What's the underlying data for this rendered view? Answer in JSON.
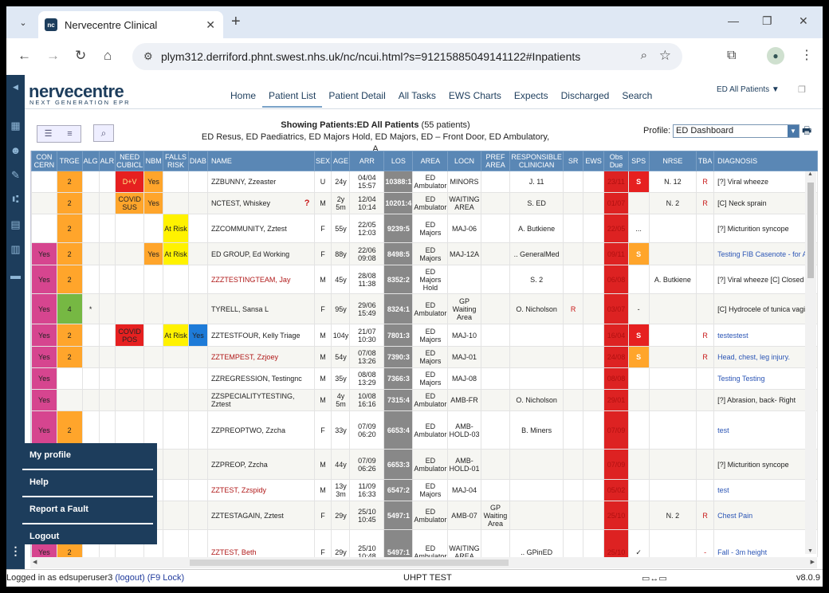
{
  "browser": {
    "tab_title": "Nervecentre Clinical",
    "favicon_text": "nc",
    "url": "plym312.derriford.phnt.swest.nhs.uk/nc/ncui.html?s=91215885049141122#Inpatients"
  },
  "logo": {
    "brand": "nervecentre",
    "tagline": "NEXT GENERATION EPR"
  },
  "nav": {
    "items": [
      "Home",
      "Patient List",
      "Patient Detail",
      "All Tasks",
      "EWS Charts",
      "Expects",
      "Discharged",
      "Search"
    ],
    "active": "Patient List",
    "ward_selector": "ED All Patients ▼"
  },
  "header": {
    "showing_label": "Showing Patients:ED All Patients",
    "count": "(55 patients)",
    "areas": "ED Resus, ED Paediatrics, ED Majors Hold, ED Majors, ED – Front Door, ED Ambulatory, A",
    "profile_label": "Profile:",
    "profile_value": "ED Dashboard"
  },
  "columns": [
    "CON CERN",
    "TRGE",
    "ALG",
    "ALR",
    "NEED CUBICL",
    "NBM",
    "FALLS RISK",
    "DIAB",
    "NAME",
    "SEX",
    "AGE",
    "ARR",
    "LOS",
    "AREA",
    "LOCN",
    "PREF AREA",
    "RESPONSIBLE CLINICIAN",
    "SR",
    "EWS",
    "Obs Due",
    "SPS",
    "NRSE",
    "TBA",
    "DIAGNOSIS"
  ],
  "colors": {
    "pink": "#d6458f",
    "amber": "#ffa52b",
    "red": "#e62020",
    "yellow": "#fff200",
    "green": "#76b843",
    "blue": "#1e7bd8",
    "grey": "#888888",
    "navy": "#1d3d5c"
  },
  "rows": [
    {
      "concern": "",
      "trge": "2",
      "alg": "",
      "need": "D+V",
      "nbm": "Yes",
      "falls": "",
      "diab": "",
      "name": "ZZBUNNY, Zzeaster",
      "name_red": false,
      "flag": "",
      "sex": "U",
      "age": "24y",
      "arr": "04/04 15:57",
      "los": "10388:1",
      "area": "ED Ambulator",
      "locn": "MINORS",
      "pref": "",
      "clin": "J. 11",
      "sr": "",
      "ews": "",
      "obs": "23/11",
      "sps": "S",
      "sps_color": "red",
      "nrse": "N. 12",
      "tba": "R",
      "diag": "[?] Viral wheeze",
      "diag_blue": false,
      "h": 26
    },
    {
      "concern": "",
      "trge": "2",
      "alg": "",
      "need": "COVID SUS",
      "nbm": "Yes",
      "falls": "",
      "diab": "",
      "name": "NCTEST, Whiskey",
      "name_red": false,
      "flag": "?",
      "sex": "M",
      "age": "2y 5m",
      "arr": "12/04 10:14",
      "los": "10201:4",
      "area": "ED Ambulator",
      "locn": "WAITING AREA",
      "pref": "",
      "clin": "S. ED",
      "sr": "",
      "ews": "",
      "obs": "01/07",
      "sps": "",
      "sps_color": "",
      "nrse": "N. 2",
      "tba": "R",
      "diag": "[C] Neck sprain",
      "diag_blue": false,
      "h": 26
    },
    {
      "concern": "",
      "trge": "2",
      "alg": "",
      "need": "",
      "nbm": "",
      "falls": "At Risk",
      "diab": "",
      "name": "ZZCOMMUNITY, Zztest",
      "name_red": false,
      "flag": "",
      "sex": "F",
      "age": "55y",
      "arr": "22/05 12:03",
      "los": "9239:5",
      "area": "ED Majors",
      "locn": "MAJ-06",
      "pref": "",
      "clin": "A. Butkiene",
      "sr": "",
      "ews": "",
      "obs": "22/05",
      "sps": "...",
      "sps_color": "",
      "nrse": "",
      "tba": "",
      "diag": "[?] Micturition syncope",
      "diag_blue": false,
      "h": 36
    },
    {
      "concern": "Yes",
      "trge": "2",
      "alg": "",
      "need": "",
      "nbm": "Yes",
      "falls": "At Risk",
      "diab": "",
      "name": "ED GROUP, Ed Working",
      "name_red": false,
      "flag": "",
      "sex": "F",
      "age": "88y",
      "arr": "22/06 09:08",
      "los": "8498:5",
      "area": "ED Majors",
      "locn": "MAJ-12A",
      "pref": "",
      "clin": ".. GeneralMed",
      "sr": "",
      "ews": "",
      "obs": "09/11",
      "sps": "S",
      "sps_color": "amber",
      "nrse": "",
      "tba": "",
      "diag": "Testing FIB Casenote - for AU",
      "diag_blue": true,
      "h": 28
    },
    {
      "concern": "Yes",
      "trge": "2",
      "alg": "",
      "need": "",
      "nbm": "",
      "falls": "",
      "diab": "",
      "name": "ZZZTESTINGTEAM, Jay",
      "name_red": true,
      "flag": "",
      "sex": "M",
      "age": "45y",
      "arr": "28/08 11:38",
      "los": "8352:2",
      "area": "ED Majors Hold",
      "locn": "",
      "pref": "",
      "clin": "S. 2",
      "sr": "",
      "ews": "",
      "obs": "06/08",
      "sps": "",
      "sps_color": "",
      "nrse": "A. Butkiene",
      "tba": "",
      "diag": "[?] Viral wheeze [C] Closed fr",
      "diag_blue": false,
      "h": 36
    },
    {
      "concern": "Yes",
      "trge": "4",
      "alg": "*",
      "need": "",
      "nbm": "",
      "falls": "",
      "diab": "",
      "name": "TYRELL, Sansa L",
      "name_red": false,
      "flag": "",
      "sex": "F",
      "age": "95y",
      "arr": "29/06 15:49",
      "los": "8324:1",
      "area": "ED Ambulator",
      "locn": "GP Waiting Area",
      "pref": "",
      "clin": "O. Nicholson",
      "sr": "R",
      "ews": "",
      "obs": "03/07",
      "sps": "-",
      "sps_color": "",
      "nrse": "",
      "tba": "",
      "diag": "[C] Hydrocele of tunica vagina",
      "diag_blue": false,
      "h": 38
    },
    {
      "concern": "Yes",
      "trge": "2",
      "alg": "",
      "need": "COVID POS",
      "nbm": "",
      "falls": "At Risk",
      "diab": "Yes",
      "name": "ZZTESTFOUR, Kelly Triage",
      "name_red": false,
      "flag": "",
      "sex": "M",
      "age": "104y",
      "arr": "21/07 10:30",
      "los": "7801:3",
      "area": "ED Majors",
      "locn": "MAJ-10",
      "pref": "",
      "clin": "",
      "sr": "",
      "ews": "",
      "obs": "16/04",
      "sps": "S",
      "sps_color": "red",
      "nrse": "",
      "tba": "R",
      "diag": "testestest",
      "diag_blue": true,
      "h": 28
    },
    {
      "concern": "Yes",
      "trge": "2",
      "alg": "",
      "need": "",
      "nbm": "",
      "falls": "",
      "diab": "",
      "name": "ZZTEMPEST, Zzjoey",
      "name_red": true,
      "flag": "",
      "sex": "M",
      "age": "54y",
      "arr": "07/08 13:26",
      "los": "7390:3",
      "area": "ED Majors",
      "locn": "MAJ-01",
      "pref": "",
      "clin": "",
      "sr": "",
      "ews": "",
      "obs": "24/08",
      "sps": "S",
      "sps_color": "amber",
      "nrse": "",
      "tba": "R",
      "diag": "Head, chest, leg injury.",
      "diag_blue": true,
      "h": 26
    },
    {
      "concern": "Yes",
      "trge": "",
      "alg": "",
      "need": "",
      "nbm": "",
      "falls": "",
      "diab": "",
      "name": "ZZREGRESSION, Testingnc",
      "name_red": false,
      "flag": "",
      "sex": "M",
      "age": "35y",
      "arr": "08/08 13:29",
      "los": "7366:3",
      "area": "ED Majors",
      "locn": "MAJ-08",
      "pref": "",
      "clin": "",
      "sr": "",
      "ews": "",
      "obs": "08/08",
      "sps": "",
      "sps_color": "",
      "nrse": "",
      "tba": "",
      "diag": "Testing Testing",
      "diag_blue": true,
      "h": 26
    },
    {
      "concern": "Yes",
      "trge": "",
      "alg": "",
      "need": "",
      "nbm": "",
      "falls": "",
      "diab": "",
      "name": "ZZSPECIALITYTESTING, Zztest",
      "name_red": false,
      "flag": "",
      "sex": "M",
      "age": "4y 5m",
      "arr": "10/08 16:16",
      "los": "7315:4",
      "area": "ED Ambulator",
      "locn": "AMB-FR",
      "pref": "",
      "clin": "O. Nicholson",
      "sr": "",
      "ews": "",
      "obs": "29/01",
      "sps": "",
      "sps_color": "",
      "nrse": "",
      "tba": "",
      "diag": "[?] Abrasion, back- Right",
      "diag_blue": false,
      "h": 26
    },
    {
      "concern": "Yes",
      "trge": "2",
      "alg": "",
      "need": "",
      "nbm": "",
      "falls": "",
      "diab": "",
      "name": "ZZPREOPTWO, Zzcha",
      "name_red": false,
      "flag": "",
      "sex": "F",
      "age": "33y",
      "arr": "07/09 06:20",
      "los": "6653:4",
      "area": "ED Ambulator",
      "locn": "AMB-HOLD-03",
      "pref": "",
      "clin": "B. Miners",
      "sr": "",
      "ews": "",
      "obs": "07/09",
      "sps": "",
      "sps_color": "",
      "nrse": "",
      "tba": "",
      "diag": "test",
      "diag_blue": true,
      "h": 48
    },
    {
      "concern": "Yes",
      "trge": "2",
      "alg": "",
      "need": "",
      "nbm": "",
      "falls": "",
      "diab": "",
      "name": "ZZPREOP, Zzcha",
      "name_red": false,
      "flag": "",
      "sex": "M",
      "age": "44y",
      "arr": "07/09 06:26",
      "los": "6653:3",
      "area": "ED Ambulator",
      "locn": "AMB-HOLD-01",
      "pref": "",
      "clin": "",
      "sr": "",
      "ews": "",
      "obs": "07/09",
      "sps": "",
      "sps_color": "",
      "nrse": "",
      "tba": "",
      "diag": "[?] Micturition syncope",
      "diag_blue": false,
      "h": 38
    },
    {
      "concern": "Yes",
      "trge": "2",
      "alg": "",
      "need": "",
      "nbm": "",
      "falls": "",
      "diab": "",
      "name": "ZZTEST, Zzspidy",
      "name_red": true,
      "flag": "",
      "sex": "M",
      "age": "13y 3m",
      "arr": "11/09 16:33",
      "los": "6547:2",
      "area": "ED Majors",
      "locn": "MAJ-04",
      "pref": "",
      "clin": "",
      "sr": "",
      "ews": "",
      "obs": "05/02",
      "sps": "",
      "sps_color": "",
      "nrse": "",
      "tba": "",
      "diag": "test",
      "diag_blue": true,
      "h": 26
    },
    {
      "concern": "Yes",
      "trge": "2",
      "alg": "",
      "need": "",
      "nbm": "",
      "falls": "",
      "diab": "",
      "name": "ZZTESTAGAIN, Zztest",
      "name_red": false,
      "flag": "",
      "sex": "F",
      "age": "29y",
      "arr": "25/10 10:45",
      "los": "5497:1",
      "area": "ED Ambulator",
      "locn": "AMB-07",
      "pref": "GP Waiting Area",
      "clin": "",
      "sr": "",
      "ews": "",
      "obs": "25/10",
      "sps": "",
      "sps_color": "",
      "nrse": "N. 2",
      "tba": "R",
      "diag": "Chest Pain",
      "diag_blue": true,
      "h": 36
    },
    {
      "concern": "Yes",
      "trge": "2",
      "alg": "",
      "need": "",
      "nbm": "",
      "falls": "",
      "diab": "",
      "name": "ZZTEST, Beth",
      "name_red": true,
      "flag": "",
      "sex": "F",
      "age": "29y",
      "arr": "25/10 10:48",
      "los": "5497:1",
      "area": "ED Ambulator",
      "locn": "WAITING AREA",
      "pref": "",
      "clin": ".. GPinED",
      "sr": "",
      "ews": "",
      "obs": "25/10",
      "sps": "✓",
      "sps_color": "",
      "nrse": "",
      "tba": "-",
      "diag": "Fall - 3m height",
      "diag_blue": true,
      "h": 56
    }
  ],
  "popup_menu": [
    "My profile",
    "Help",
    "Report a Fault",
    "Logout"
  ],
  "status": {
    "logged_in": "Logged in as edsuperuser3",
    "logout": "(logout)",
    "lock": "(F9 Lock)",
    "env": "UHPT TEST",
    "version": "v8.0.9"
  }
}
